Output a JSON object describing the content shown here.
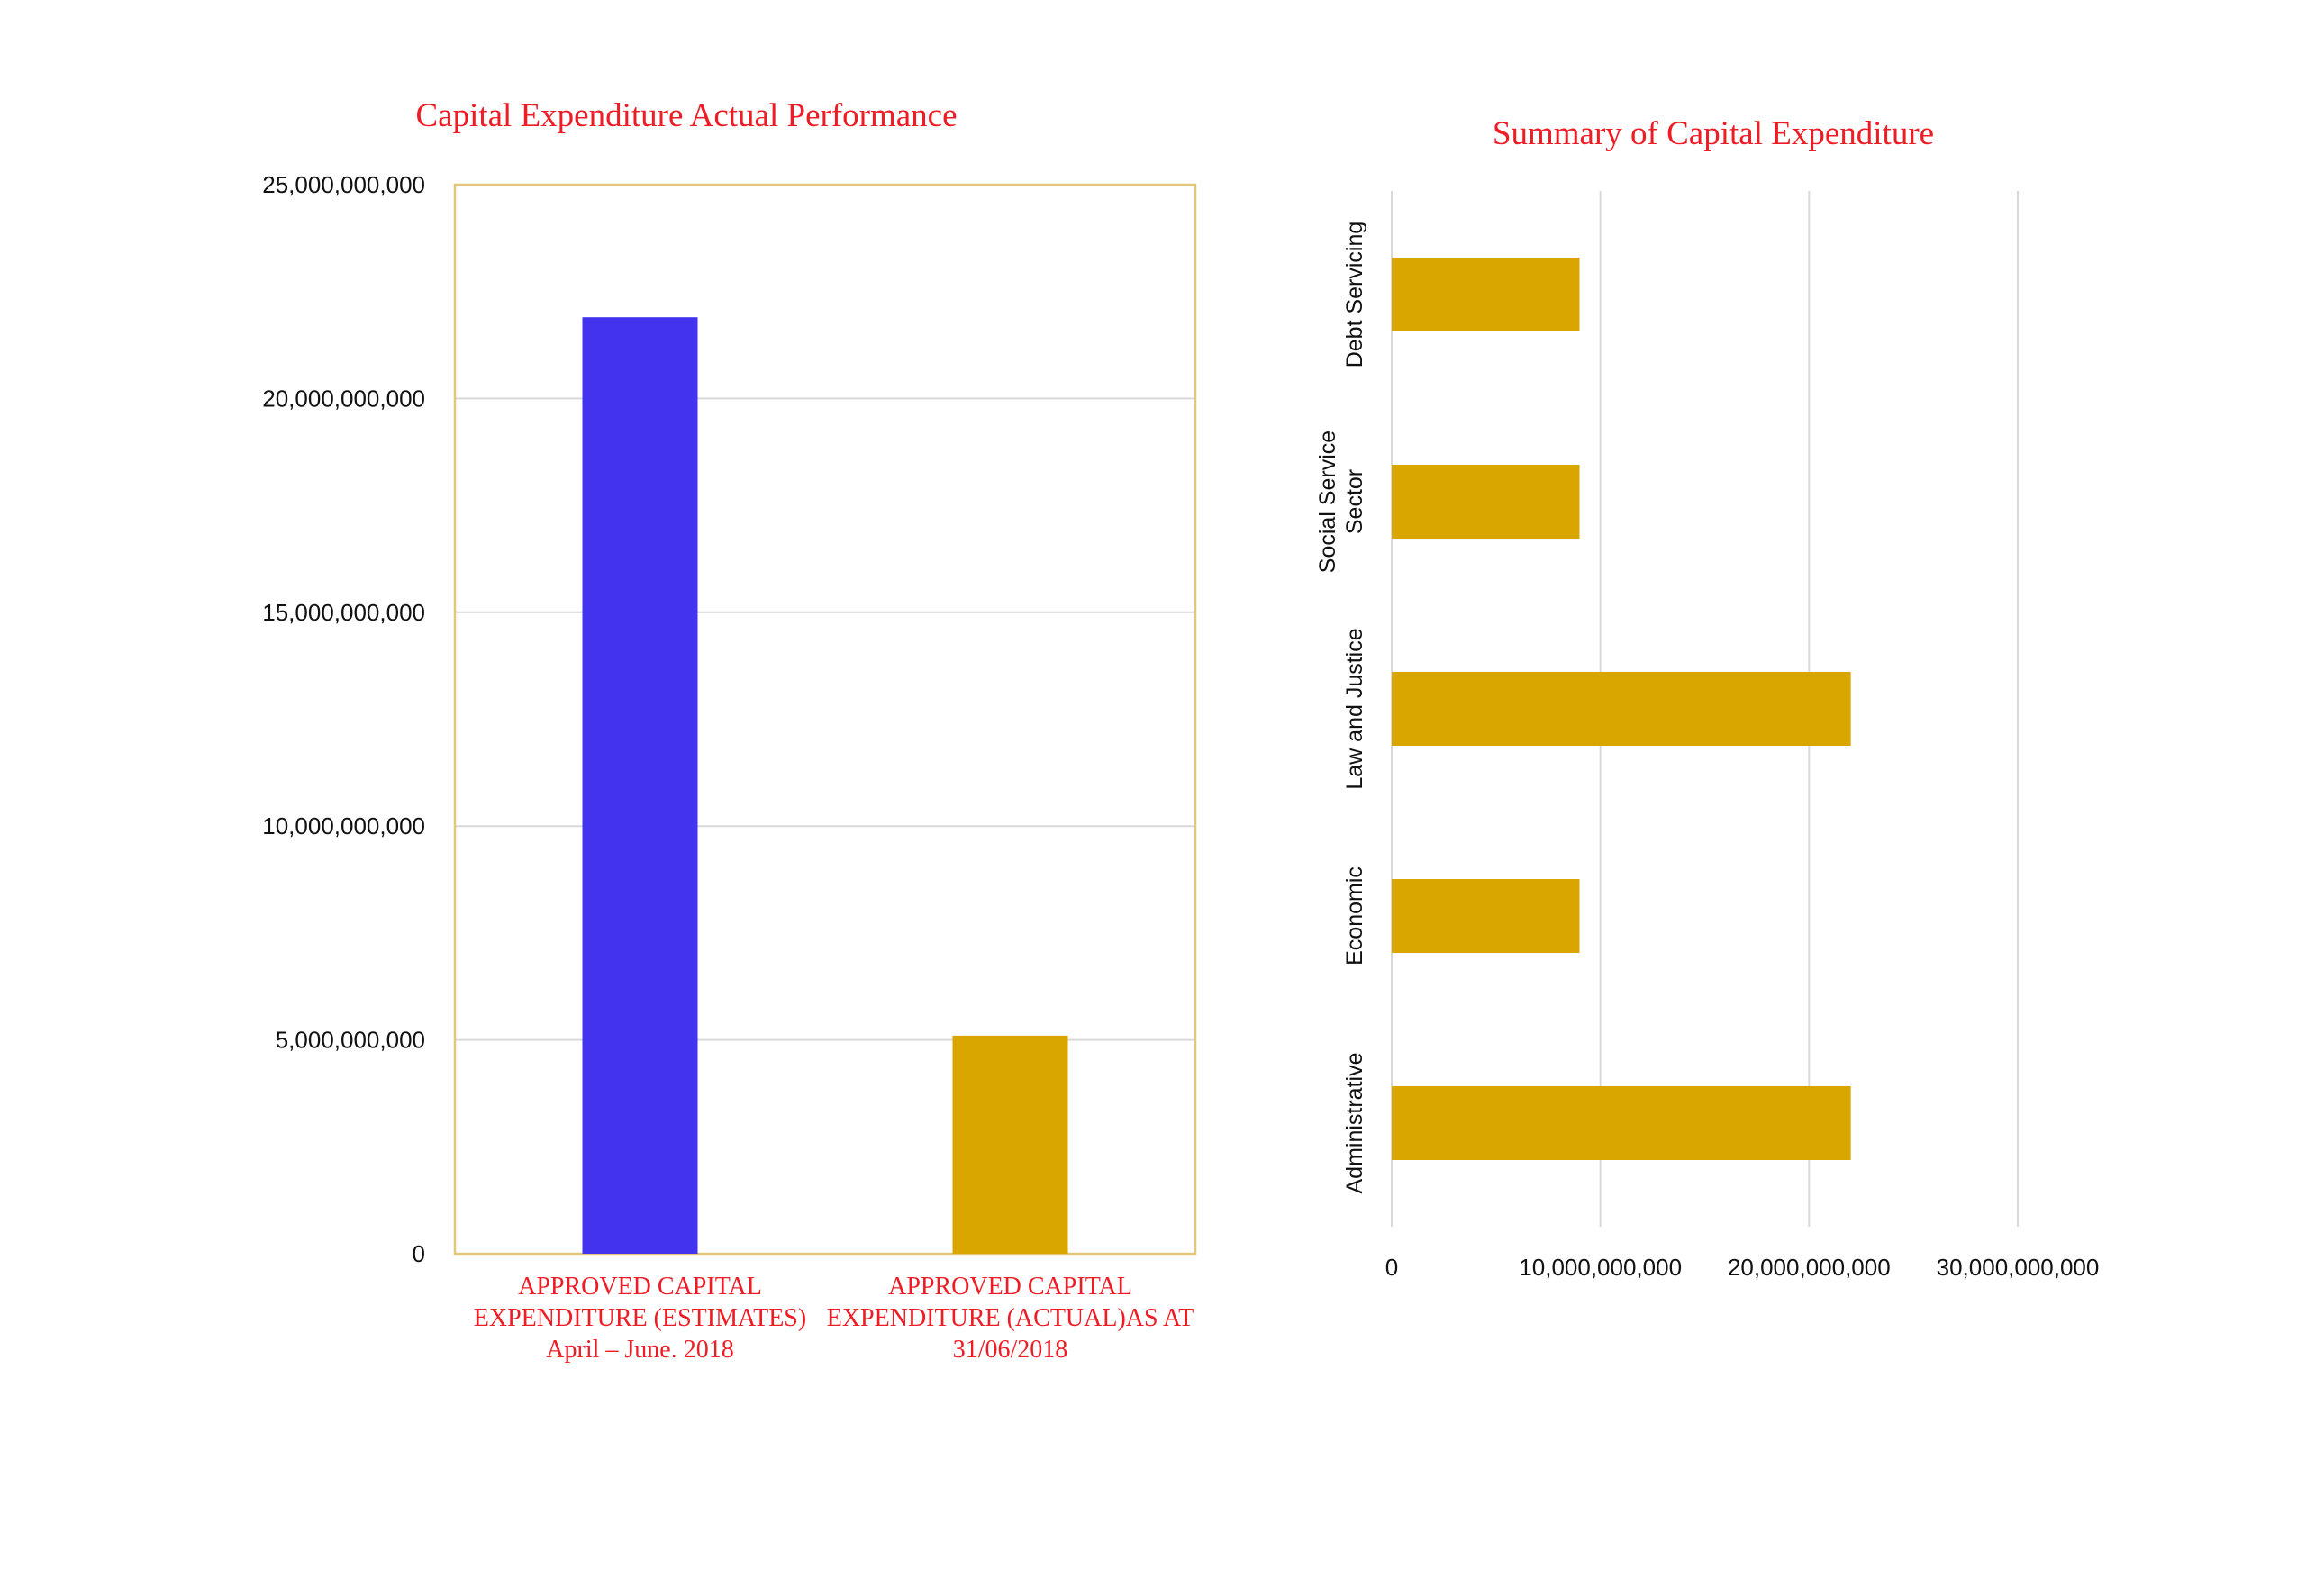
{
  "chart_data": [
    {
      "type": "bar",
      "title": "Capital Expenditure Actual Performance",
      "categories": [
        [
          "APPROVED CAPITAL",
          "EXPENDITURE (ESTIMATES)",
          "April – June. 2018"
        ],
        [
          "APPROVED CAPITAL",
          "EXPENDITURE (ACTUAL)AS AT",
          "31/06/2018"
        ]
      ],
      "values": [
        21900000000,
        5100000000
      ],
      "colors": [
        "#4433ee",
        "#d9a600"
      ],
      "yticks": [
        "0",
        "5,000,000,000",
        "10,000,000,000",
        "15,000,000,000",
        "20,000,000,000",
        "25,000,000,000"
      ],
      "ylim": [
        0,
        25000000000
      ],
      "grid": true,
      "frame_color": "#e3c77a"
    },
    {
      "type": "bar",
      "orientation": "horizontal",
      "title": "Summary of Capital Expenditure",
      "categories": [
        [
          "Debt Servicing"
        ],
        [
          "Social Service",
          "Sector"
        ],
        [
          "Law and Justice"
        ],
        [
          "Economic"
        ],
        [
          "Administrative"
        ]
      ],
      "values": [
        9000000000,
        9000000000,
        22000000000,
        9000000000,
        22000000000
      ],
      "color": "#d9a600",
      "xticks": [
        "0",
        "10,000,000,000",
        "20,000,000,000",
        "30,000,000,000"
      ],
      "xlim": [
        0,
        30000000000
      ],
      "grid": true
    }
  ]
}
